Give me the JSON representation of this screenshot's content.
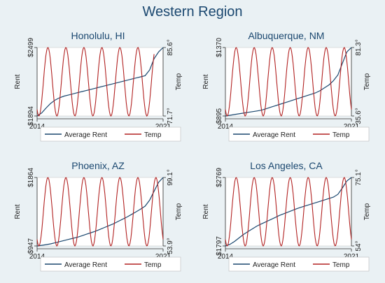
{
  "title": "Western Region",
  "colors": {
    "rent": "#1a476f",
    "temp": "#b22222",
    "panel_bg": "#eaf1f4",
    "plot_bg": "#ffffff"
  },
  "chart_data": [
    {
      "type": "line",
      "title": "Honolulu, HI",
      "x_ticks": [
        "2014",
        "2021"
      ],
      "left_axis": {
        "label": "Rent",
        "ticks": [
          "$1894",
          "$2499"
        ],
        "range": [
          1894,
          2499
        ]
      },
      "right_axis": {
        "label": "Temp",
        "ticks": [
          "71.7°",
          "85.6°"
        ],
        "range": [
          71.7,
          85.6
        ]
      },
      "legend": [
        "Average Rent",
        "Temp"
      ],
      "series": [
        {
          "name": "Average Rent",
          "axis": "left",
          "x_start": 2014,
          "step_years": 0.25,
          "values": [
            1894,
            1920,
            1965,
            2005,
            2035,
            2055,
            2070,
            2080,
            2090,
            2100,
            2110,
            2120,
            2130,
            2140,
            2150,
            2160,
            2170,
            2180,
            2190,
            2200,
            2210,
            2220,
            2230,
            2240,
            2250,
            2300,
            2400,
            2460,
            2499
          ]
        },
        {
          "name": "Temp",
          "axis": "right",
          "x_start": 2014,
          "cycles": 6.5,
          "min": 71.7,
          "max": 85.6
        }
      ]
    },
    {
      "type": "line",
      "title": "Albuquerque, NM",
      "x_ticks": [
        "2014",
        "2021"
      ],
      "left_axis": {
        "label": "Rent",
        "ticks": [
          "$895",
          "$1370"
        ],
        "range": [
          895,
          1370
        ]
      },
      "right_axis": {
        "label": "Temp",
        "ticks": [
          "35.6°",
          "81.3°"
        ],
        "range": [
          35.6,
          81.3
        ]
      },
      "legend": [
        "Average Rent",
        "Temp"
      ],
      "series": [
        {
          "name": "Average Rent",
          "axis": "left",
          "x_start": 2014,
          "step_years": 0.25,
          "values": [
            895,
            900,
            905,
            910,
            915,
            920,
            925,
            930,
            935,
            945,
            955,
            965,
            975,
            985,
            995,
            1005,
            1015,
            1025,
            1035,
            1045,
            1055,
            1070,
            1090,
            1110,
            1140,
            1180,
            1260,
            1340,
            1370
          ]
        },
        {
          "name": "Temp",
          "axis": "right",
          "x_start": 2014,
          "cycles": 7,
          "min": 35.6,
          "max": 81.3
        }
      ]
    },
    {
      "type": "line",
      "title": "Phoenix, AZ",
      "x_ticks": [
        "2014",
        "2021"
      ],
      "left_axis": {
        "label": "Rent",
        "ticks": [
          "$947",
          "$1864"
        ],
        "range": [
          947,
          1864
        ]
      },
      "right_axis": {
        "label": "Temp",
        "ticks": [
          "53.9°",
          "99.1°"
        ],
        "range": [
          53.9,
          99.1
        ]
      },
      "legend": [
        "Average Rent",
        "Temp"
      ],
      "series": [
        {
          "name": "Average Rent",
          "axis": "left",
          "x_start": 2014,
          "step_years": 0.25,
          "values": [
            947,
            955,
            965,
            975,
            990,
            1005,
            1020,
            1035,
            1050,
            1065,
            1085,
            1105,
            1125,
            1145,
            1170,
            1195,
            1220,
            1245,
            1275,
            1305,
            1335,
            1370,
            1405,
            1440,
            1480,
            1560,
            1680,
            1800,
            1864
          ]
        },
        {
          "name": "Temp",
          "axis": "right",
          "x_start": 2014,
          "cycles": 7,
          "min": 53.9,
          "max": 99.1
        }
      ]
    },
    {
      "type": "line",
      "title": "Los Angeles, CA",
      "x_ticks": [
        "2014",
        "2021"
      ],
      "left_axis": {
        "label": "Rent",
        "ticks": [
          "$1797",
          "$2769"
        ],
        "range": [
          1797,
          2769
        ]
      },
      "right_axis": {
        "label": "Temp",
        "ticks": [
          "54°",
          "75.1°"
        ],
        "range": [
          54,
          75.1
        ]
      },
      "legend": [
        "Average Rent",
        "Temp"
      ],
      "series": [
        {
          "name": "Average Rent",
          "axis": "left",
          "x_start": 2014,
          "step_years": 0.25,
          "values": [
            1797,
            1820,
            1860,
            1910,
            1960,
            2000,
            2040,
            2080,
            2110,
            2140,
            2170,
            2200,
            2230,
            2255,
            2280,
            2305,
            2330,
            2350,
            2370,
            2390,
            2410,
            2430,
            2450,
            2470,
            2490,
            2530,
            2620,
            2720,
            2769
          ]
        },
        {
          "name": "Temp",
          "axis": "right",
          "x_start": 2014,
          "cycles": 7,
          "min": 54,
          "max": 75.1
        }
      ]
    }
  ]
}
